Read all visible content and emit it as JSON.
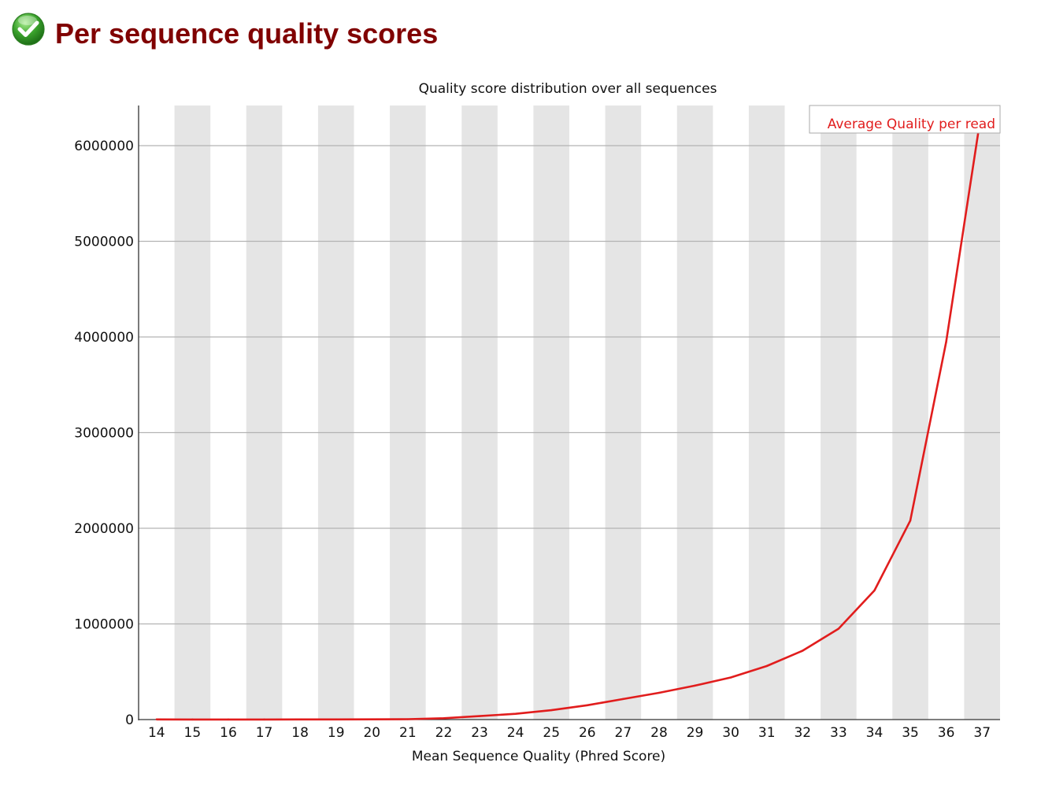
{
  "header": {
    "status": "pass",
    "title": "Per sequence quality scores",
    "icon": "check-circle-icon",
    "title_color": "#800000",
    "icon_color": "#3aa22c"
  },
  "chart_data": {
    "type": "line",
    "title": "Quality score distribution over all sequences",
    "xlabel": "Mean Sequence Quality (Phred Score)",
    "ylabel": "",
    "categories": [
      "14",
      "15",
      "16",
      "17",
      "18",
      "19",
      "20",
      "21",
      "22",
      "23",
      "24",
      "25",
      "26",
      "27",
      "28",
      "29",
      "30",
      "31",
      "32",
      "33",
      "34",
      "35",
      "36",
      "37"
    ],
    "ylim": [
      0,
      6420000
    ],
    "yticks": [
      "0",
      "1000000",
      "2000000",
      "3000000",
      "4000000",
      "5000000",
      "6000000"
    ],
    "ytick_values": [
      0,
      1000000,
      2000000,
      3000000,
      4000000,
      5000000,
      6000000
    ],
    "grid": true,
    "alternating_column_shading": true,
    "legend_position": "top-right",
    "series": [
      {
        "name": "Average Quality per read",
        "color": "#e11d1d",
        "values": [
          2000,
          1000,
          1000,
          1000,
          1500,
          2000,
          2500,
          4000,
          14000,
          36000,
          60000,
          98000,
          150000,
          215000,
          280000,
          355000,
          440000,
          560000,
          720000,
          950000,
          1350000,
          2080000,
          3950000,
          6400000
        ]
      }
    ]
  }
}
